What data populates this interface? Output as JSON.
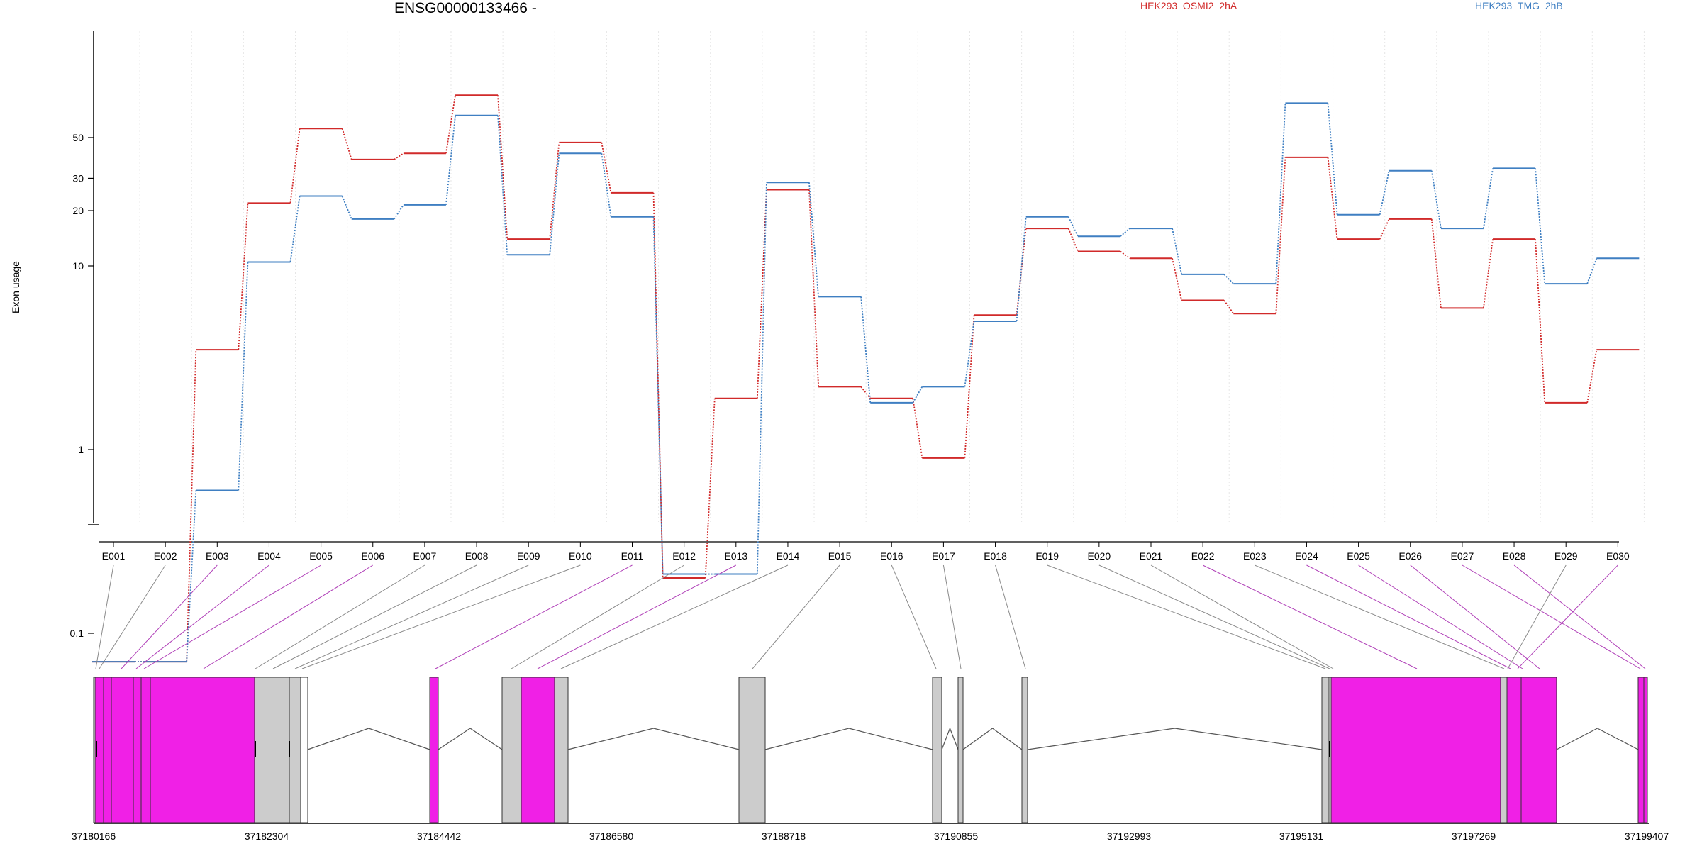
{
  "chart_data": {
    "type": "line",
    "title": "ENSG00000133466 -",
    "ylabel": "Exon usage",
    "y_scale": "log",
    "ylim": [
      0.07,
      100
    ],
    "yticks": [
      0.1,
      1,
      10,
      20,
      30,
      50
    ],
    "ytick_labels": [
      "0.1",
      "1",
      "10",
      "20",
      "30",
      "50"
    ],
    "categories": [
      "E001",
      "E002",
      "E003",
      "E004",
      "E005",
      "E006",
      "E007",
      "E008",
      "E009",
      "E010",
      "E011",
      "E012",
      "E013",
      "E014",
      "E015",
      "E016",
      "E017",
      "E018",
      "E019",
      "E020",
      "E021",
      "E022",
      "E023",
      "E024",
      "E025",
      "E026",
      "E027",
      "E028",
      "E029",
      "E030"
    ],
    "series": [
      {
        "name": "HEK293_OSMI2_2hA",
        "color": "#d12a2a",
        "values": [
          0.07,
          0.07,
          3.5,
          22,
          56,
          38,
          41,
          85,
          14,
          47,
          25,
          0.2,
          1.9,
          26,
          2.2,
          1.9,
          0.9,
          5.4,
          16,
          12,
          11,
          6.5,
          5.5,
          39,
          14,
          18,
          5.9,
          14,
          1.8,
          3.5
        ]
      },
      {
        "name": "HEK293_TMG_2hB",
        "color": "#3f7fc2",
        "values": [
          0.07,
          0.07,
          0.6,
          10.5,
          24,
          18,
          21.5,
          66,
          11.5,
          41,
          18.5,
          0.21,
          0.21,
          28.5,
          6.8,
          1.8,
          2.2,
          5,
          18.5,
          14.5,
          16,
          9,
          8,
          77,
          19,
          33,
          16,
          34,
          8,
          11
        ]
      }
    ],
    "grid": true,
    "legend_placement": "top"
  },
  "gene_model": {
    "coord_labels": [
      "37180166",
      "37182304",
      "37184442",
      "37186580",
      "37188718",
      "37190855",
      "37192993",
      "37195131",
      "37197269",
      "37199407"
    ]
  },
  "colors": {
    "significant_exon": "#f020e6",
    "exon": "#cccccc",
    "connector_significant": "#b040b8",
    "connector": "#8a8a8a"
  }
}
